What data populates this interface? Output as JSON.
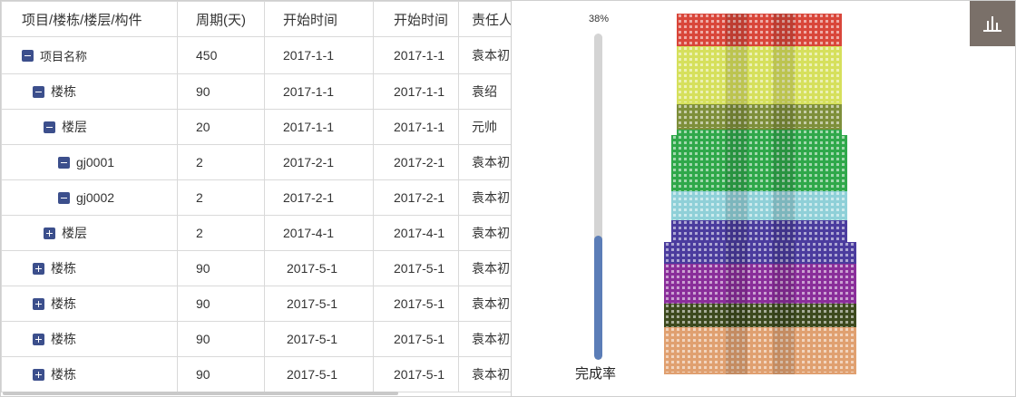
{
  "table": {
    "headers": [
      "项目/楼栋/楼层/构件",
      "周期(天)",
      "开始时间",
      "开始时间",
      "责任人"
    ],
    "rows": [
      {
        "name": "项目名称",
        "days": "450",
        "start": "2017-1-1",
        "start2": "2017-1-1",
        "owner": "袁本初"
      },
      {
        "name": "楼栋",
        "days": "90",
        "start": "2017-1-1",
        "start2": "2017-1-1",
        "owner": "袁绍"
      },
      {
        "name": "楼层",
        "days": "20",
        "start": "2017-1-1",
        "start2": "2017-1-1",
        "owner": "元帅"
      },
      {
        "name": "gj0001",
        "days": "2",
        "start": "2017-2-1",
        "start2": "2017-2-1",
        "owner": "袁本初"
      },
      {
        "name": "gj0002",
        "days": "2",
        "start": "2017-2-1",
        "start2": "2017-2-1",
        "owner": "袁本初"
      },
      {
        "name": "楼层",
        "days": "2",
        "start": "2017-4-1",
        "start2": "2017-4-1",
        "owner": "袁本初"
      },
      {
        "name": "楼栋",
        "days": "90",
        "start": "2017-5-1",
        "start2": "2017-5-1",
        "owner": "袁本初"
      },
      {
        "name": "楼栋",
        "days": "90",
        "start": "2017-5-1",
        "start2": "2017-5-1",
        "owner": "袁本初"
      },
      {
        "name": "楼栋",
        "days": "90",
        "start": "2017-5-1",
        "start2": "2017-5-1",
        "owner": "袁本初"
      },
      {
        "name": "楼栋",
        "days": "90",
        "start": "2017-5-1",
        "start2": "2017-5-1",
        "owner": "袁本初"
      }
    ]
  },
  "progress": {
    "label": "38%",
    "value": 0.38,
    "caption": "完成率"
  },
  "icons": {
    "toggle_expanded": "minus-square-icon",
    "toggle_collapsed": "plus-square-icon",
    "chart_button": "bar-chart-icon"
  },
  "colors": {
    "toggle": "#3c4f8c",
    "progress_fill": "#5b7db7",
    "progress_track": "#d4d4d4",
    "chart_button_bg": "#7a7069"
  },
  "tower_bands": [
    "#d9463a",
    "#d6e05c",
    "#7e8f3a",
    "#2fa84a",
    "#8fd0d8",
    "#4b3c9e",
    "#8a2e9a",
    "#3d4a1e",
    "#e0a070"
  ]
}
